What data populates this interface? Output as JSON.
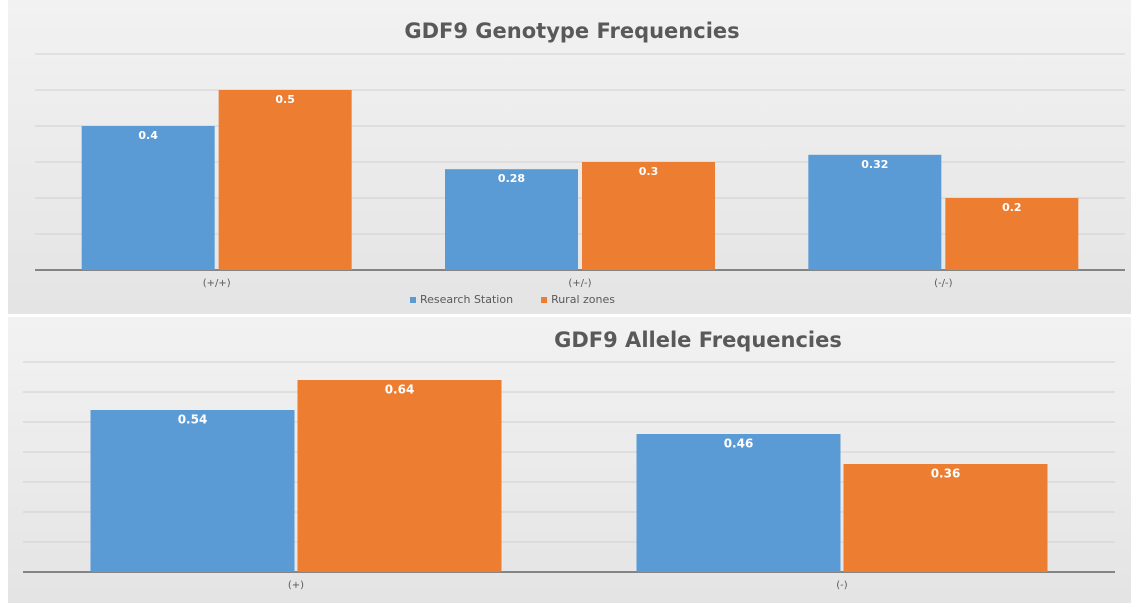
{
  "chart_data": [
    {
      "type": "bar",
      "title": "GDF9 Genotype Frequencies",
      "categories": [
        "(+/+)",
        "(+/-)",
        "(-/-)"
      ],
      "series": [
        {
          "name": "Research Station",
          "color": "#5b9bd5",
          "values": [
            0.4,
            0.28,
            0.32
          ]
        },
        {
          "name": "Rural zones",
          "color": "#ed7d31",
          "values": [
            0.5,
            0.3,
            0.2
          ]
        }
      ],
      "ylim": [
        0,
        0.6
      ],
      "yticks": [
        0,
        0.1,
        0.2,
        0.3,
        0.4,
        0.5,
        0.6
      ],
      "grid": true,
      "legend": "bottom"
    },
    {
      "type": "bar",
      "title": "GDF9 Allele Frequencies",
      "categories": [
        "(+)",
        "(-)"
      ],
      "series": [
        {
          "color": "#5b9bd5",
          "values": [
            0.54,
            0.46
          ]
        },
        {
          "color": "#ed7d31",
          "values": [
            0.64,
            0.36
          ]
        }
      ],
      "ylim": [
        0,
        0.7
      ],
      "yticks": [
        0,
        0.1,
        0.2,
        0.3,
        0.4,
        0.5,
        0.6,
        0.7
      ],
      "grid": true
    }
  ]
}
